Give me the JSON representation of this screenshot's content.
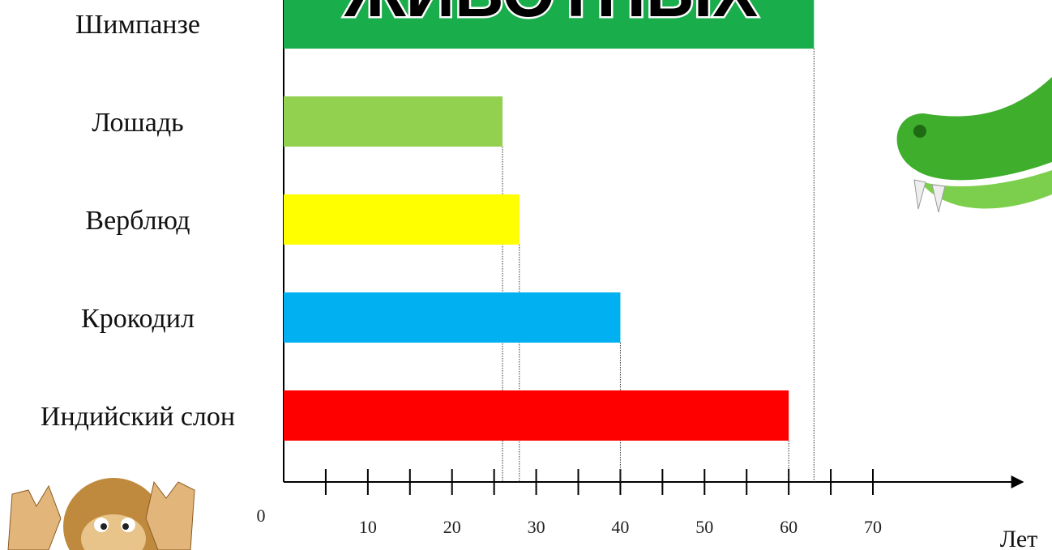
{
  "chart_data": {
    "type": "bar",
    "orientation": "horizontal",
    "title": "ЖИВОТНЫХ",
    "categories": [
      "Шимпанзе",
      "Лошадь",
      "Верблюд",
      "Крокодил",
      "Индийский слон"
    ],
    "values": [
      63,
      26,
      28,
      40,
      60
    ],
    "colors": [
      "#1aad4c",
      "#92d050",
      "#ffff00",
      "#00b0f0",
      "#ff0000"
    ],
    "xlabel": "Лет",
    "xlim": [
      0,
      70
    ],
    "xticks": [
      0,
      10,
      20,
      30,
      40,
      50,
      60,
      70
    ],
    "minor_xticks": [
      5,
      15,
      25,
      35,
      45,
      55,
      65
    ]
  }
}
